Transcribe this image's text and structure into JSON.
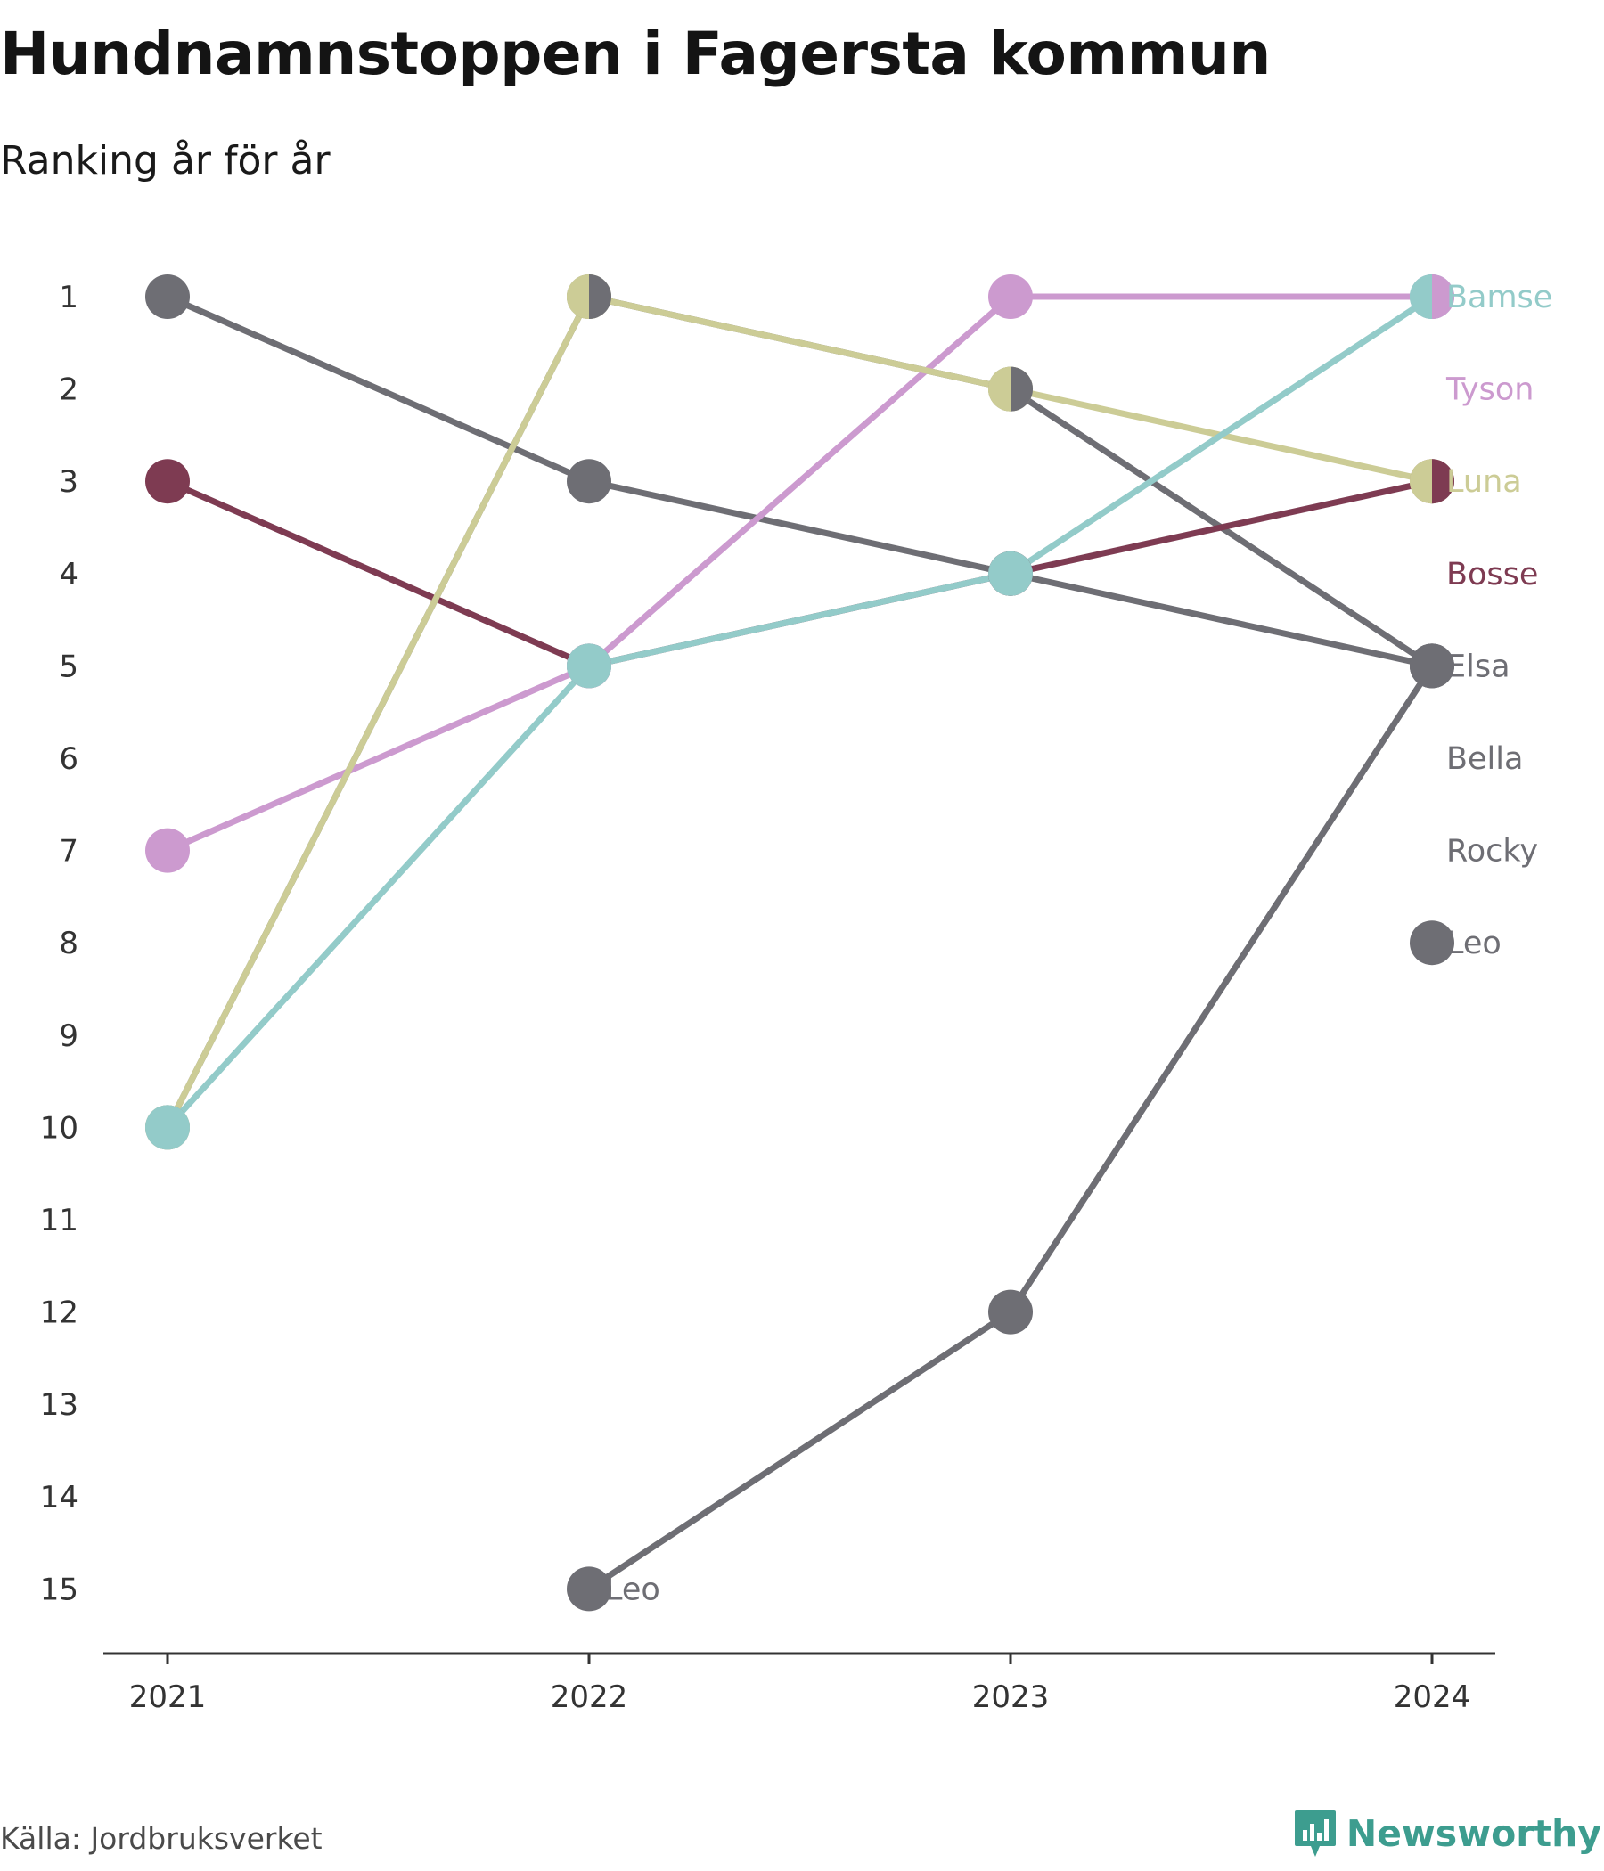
{
  "title": "Hundnamnstoppen i Fagersta kommun",
  "subtitle": "Ranking år för år",
  "source": "Källa: Jordbruksverket",
  "brand": {
    "name": "Newsworthy",
    "icon": "newsworthy-logo-icon",
    "color": "#3d9d8f"
  },
  "chart_data": {
    "type": "line",
    "title": "Hundnamnstoppen i Fagersta kommun",
    "subtitle": "Ranking år för år",
    "x": [
      "2021",
      "2022",
      "2023",
      "2024"
    ],
    "ylim": [
      1,
      15
    ],
    "y_inverted": true,
    "y_ticks": [
      "1",
      "2",
      "3",
      "4",
      "5",
      "6",
      "7",
      "8",
      "9",
      "10",
      "11",
      "12",
      "13",
      "14",
      "15"
    ],
    "grid": false,
    "series": [
      {
        "name": "Elsa",
        "color": "#6e6e74",
        "values": [
          1,
          3,
          4,
          5
        ]
      },
      {
        "name": "Bella",
        "color": "#6e6e74",
        "values": [
          10,
          1,
          2,
          5
        ]
      },
      {
        "name": "Bosse",
        "color": "#7e3b52",
        "values": [
          3,
          5,
          4,
          3
        ]
      },
      {
        "name": "Tyson",
        "color": "#cc9acf",
        "values": [
          7,
          5,
          1,
          1
        ]
      },
      {
        "name": "Luna",
        "color": "#cccc96",
        "values": [
          10,
          1,
          2,
          3
        ]
      },
      {
        "name": "Bamse",
        "color": "#93cbc9",
        "values": [
          10,
          5,
          4,
          1
        ]
      },
      {
        "name": "Leo",
        "color": "#6e6e74",
        "values": [
          null,
          15,
          12,
          5
        ]
      },
      {
        "name": "Rocky",
        "color": "#6e6e74",
        "values": [
          null,
          null,
          null,
          null
        ]
      },
      {
        "name": "Leo",
        "color": "#6e6e74",
        "values": [
          null,
          null,
          null,
          8
        ]
      }
    ],
    "end_labels": [
      {
        "text": "Bamse",
        "rank": 1,
        "color": "#93cbc9"
      },
      {
        "text": "Tyson",
        "rank": 2,
        "color": "#cc9acf"
      },
      {
        "text": "Luna",
        "rank": 3,
        "color": "#cccc96"
      },
      {
        "text": "Bosse",
        "rank": 4,
        "color": "#7e3b52"
      },
      {
        "text": "Elsa",
        "rank": 5,
        "color": "#6e6e74"
      },
      {
        "text": "Bella",
        "rank": 6,
        "color": "#6e6e74"
      },
      {
        "text": "Rocky",
        "rank": 7,
        "color": "#6e6e74"
      },
      {
        "text": "Leo",
        "rank": 8,
        "color": "#6e6e74"
      }
    ],
    "inline_labels": [
      {
        "text": "Leo",
        "x": "2022",
        "rank": 15,
        "color": "#6e6e74"
      }
    ],
    "split_markers": [
      {
        "x": "2022",
        "rank": 1,
        "left": "#cccc96",
        "right": "#6e6e74"
      },
      {
        "x": "2023",
        "rank": 2,
        "left": "#cccc96",
        "right": "#6e6e74"
      },
      {
        "x": "2024",
        "rank": 1,
        "left": "#93cbc9",
        "right": "#cc9acf"
      },
      {
        "x": "2024",
        "rank": 3,
        "left": "#cccc96",
        "right": "#7e3b52"
      }
    ]
  }
}
